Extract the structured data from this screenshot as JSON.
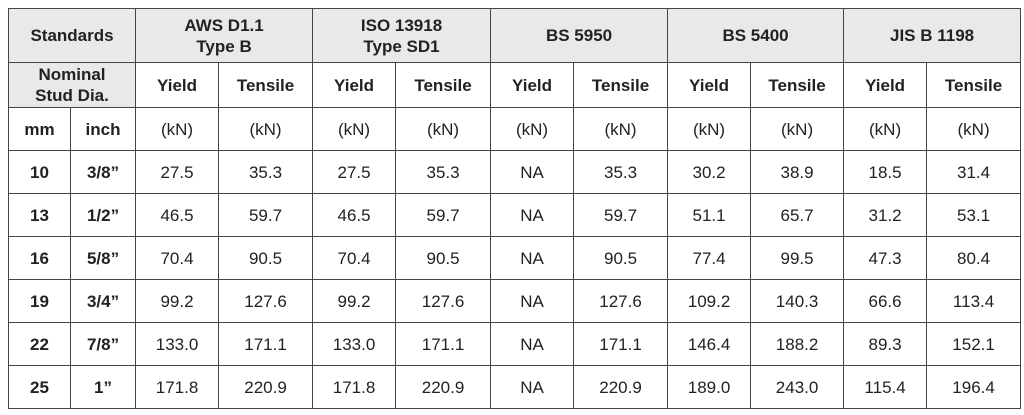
{
  "header": {
    "standards": "Standards",
    "groups": [
      "AWS D1.1\nType B",
      "ISO 13918\nType SD1",
      "BS 5950",
      "BS 5400",
      "JIS B 1198"
    ]
  },
  "subheader": {
    "diameter": "Nominal\nStud Dia.",
    "columns": [
      "Yield",
      "Tensile",
      "Yield",
      "Tensile",
      "Yield",
      "Tensile",
      "Yield",
      "Tensile",
      "Yield",
      "Tensile"
    ]
  },
  "units": [
    "mm",
    "inch",
    "(kN)",
    "(kN)",
    "(kN)",
    "(kN)",
    "(kN)",
    "(kN)",
    "(kN)",
    "(kN)",
    "(kN)",
    "(kN)"
  ],
  "rows": [
    [
      "10",
      "3/8”",
      "27.5",
      "35.3",
      "27.5",
      "35.3",
      "NA",
      "35.3",
      "30.2",
      "38.9",
      "18.5",
      "31.4"
    ],
    [
      "13",
      "1/2”",
      "46.5",
      "59.7",
      "46.5",
      "59.7",
      "NA",
      "59.7",
      "51.1",
      "65.7",
      "31.2",
      "53.1"
    ],
    [
      "16",
      "5/8”",
      "70.4",
      "90.5",
      "70.4",
      "90.5",
      "NA",
      "90.5",
      "77.4",
      "99.5",
      "47.3",
      "80.4"
    ],
    [
      "19",
      "3/4”",
      "99.2",
      "127.6",
      "99.2",
      "127.6",
      "NA",
      "127.6",
      "109.2",
      "140.3",
      "66.6",
      "113.4"
    ],
    [
      "22",
      "7/8”",
      "133.0",
      "171.1",
      "133.0",
      "171.1",
      "NA",
      "171.1",
      "146.4",
      "188.2",
      "89.3",
      "152.1"
    ],
    [
      "25",
      "1”",
      "171.8",
      "220.9",
      "171.8",
      "220.9",
      "NA",
      "220.9",
      "189.0",
      "243.0",
      "115.4",
      "196.4"
    ]
  ]
}
